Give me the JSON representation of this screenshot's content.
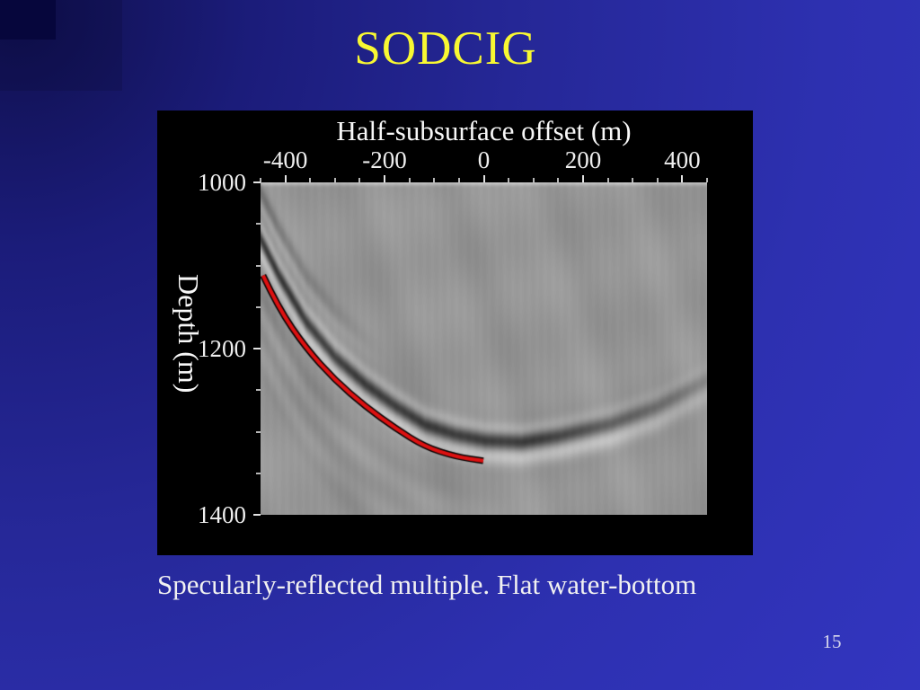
{
  "slide": {
    "title": "SODCIG",
    "caption": "Specularly-reflected multiple. Flat water-bottom",
    "page_number": "15",
    "colors": {
      "background_dark_corner": "#10104e",
      "background_bright": "#3538c8",
      "corner_accent": "#06063c",
      "title_yellow": "#f8f832",
      "figure_background": "#000000",
      "axis_text": "#f8f8f8"
    }
  },
  "chart_data": {
    "type": "heatmap",
    "description": "Grayscale seismic subsurface-offset common image gather (SODCIG) with picked specular multiple curve overlaid in red",
    "xlabel": "Half-subsurface offset (m)",
    "ylabel": "Depth (m)",
    "xlim": [
      -450,
      450
    ],
    "ylim": [
      1400,
      1000
    ],
    "x_ticks_labeled": [
      -400,
      -200,
      0,
      200,
      400
    ],
    "y_ticks_labeled": [
      1000,
      1200,
      1400
    ],
    "minor_tick_step_m": 50,
    "major_tick_step_x_m": 200,
    "major_tick_step_y_m": 200,
    "grid": false,
    "colors": {
      "seismic_base_gray": "#969696",
      "pick_red": "#dd1111",
      "tick_major": "#e2e2e2",
      "tick_minor": "#b5b5b5"
    },
    "picked_curve": {
      "name": "specularly-reflected-multiple-pick",
      "color": "#dd1111",
      "points_offset_depth": [
        [
          -445,
          1112
        ],
        [
          -414,
          1151
        ],
        [
          -359,
          1199
        ],
        [
          -300,
          1238
        ],
        [
          -238,
          1270
        ],
        [
          -178,
          1296
        ],
        [
          -119,
          1318
        ],
        [
          -57,
          1330
        ],
        [
          -1,
          1335
        ]
      ]
    },
    "seismic_event": {
      "name": "dark-reflection-event",
      "points_offset_depth": [
        [
          -450,
          1074
        ],
        [
          -414,
          1117
        ],
        [
          -359,
          1173
        ],
        [
          -300,
          1216
        ],
        [
          -238,
          1249
        ],
        [
          -178,
          1275
        ],
        [
          -119,
          1297
        ],
        [
          -57,
          1309
        ],
        [
          3,
          1316
        ],
        [
          75,
          1318
        ],
        [
          148,
          1311
        ],
        [
          256,
          1296
        ],
        [
          347,
          1276
        ],
        [
          455,
          1242
        ]
      ]
    }
  }
}
